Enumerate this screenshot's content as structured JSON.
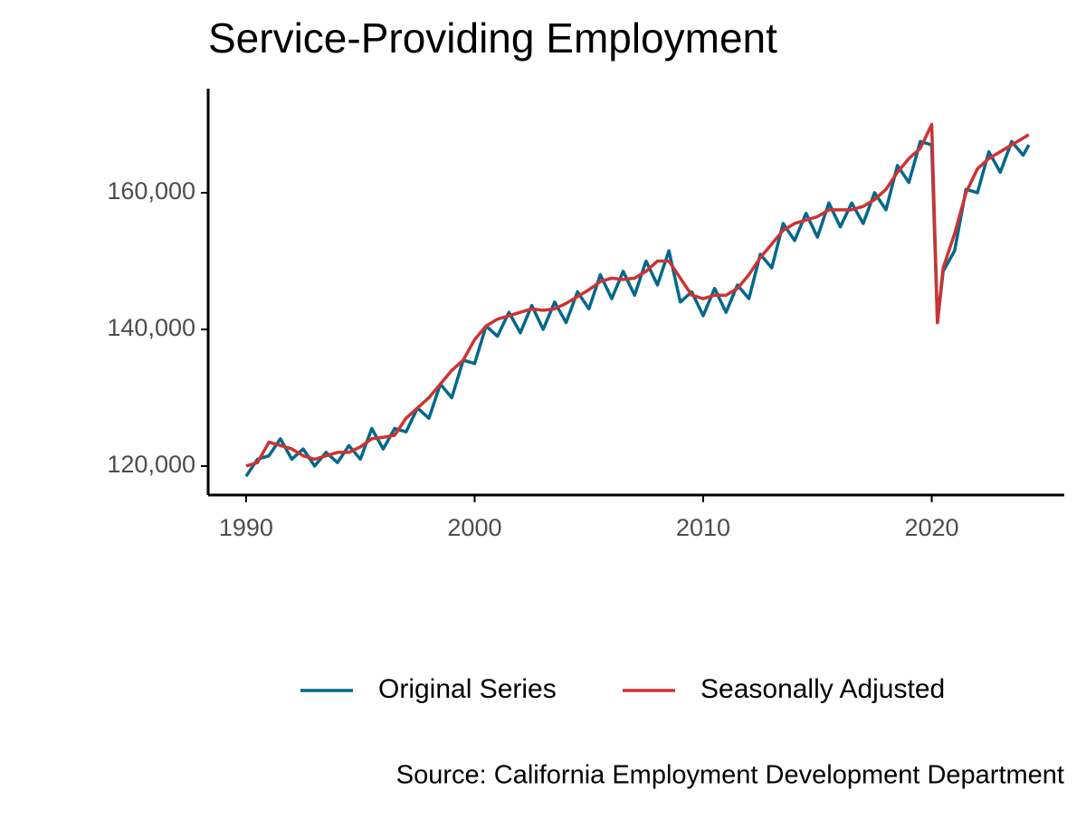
{
  "chart_data": {
    "type": "line",
    "title": "Service-Providing Employment",
    "caption": "Source: California Employment Development Department",
    "x": [
      1990,
      1990.5,
      1991,
      1991.5,
      1992,
      1992.5,
      1993,
      1993.5,
      1994,
      1994.5,
      1995,
      1995.5,
      1996,
      1996.5,
      1997,
      1997.5,
      1998,
      1998.5,
      1999,
      1999.5,
      2000,
      2000.5,
      2001,
      2001.5,
      2002,
      2002.5,
      2003,
      2003.5,
      2004,
      2004.5,
      2005,
      2005.5,
      2006,
      2006.5,
      2007,
      2007.5,
      2008,
      2008.5,
      2009,
      2009.5,
      2010,
      2010.5,
      2011,
      2011.5,
      2012,
      2012.5,
      2013,
      2013.5,
      2014,
      2014.5,
      2015,
      2015.5,
      2016,
      2016.5,
      2017,
      2017.5,
      2018,
      2018.5,
      2019,
      2019.5,
      2020,
      2020.25,
      2020.5,
      2021,
      2021.5,
      2022,
      2022.5,
      2023,
      2023.5,
      2024,
      2024.25
    ],
    "series": [
      {
        "name": "Original Series",
        "color": "#00688b",
        "values": [
          118500,
          121000,
          121500,
          124000,
          121000,
          122500,
          120000,
          122000,
          120500,
          123000,
          121000,
          125500,
          122500,
          125500,
          125000,
          128500,
          127000,
          132000,
          130000,
          135500,
          135000,
          140500,
          139000,
          142500,
          139500,
          143500,
          140000,
          144000,
          141000,
          145500,
          143000,
          148000,
          144500,
          148500,
          145000,
          150000,
          146500,
          151500,
          144000,
          145500,
          142000,
          146000,
          142500,
          146500,
          144500,
          151000,
          149000,
          155500,
          153000,
          157000,
          153500,
          158500,
          155000,
          158500,
          155500,
          160000,
          157500,
          164000,
          161500,
          167500,
          167000,
          141000,
          148500,
          151500,
          160500,
          160000,
          166000,
          163000,
          167500,
          165500,
          167000
        ]
      },
      {
        "name": "Seasonally Adjusted",
        "color": "#cd3333",
        "values": [
          120000,
          120500,
          123500,
          123000,
          122500,
          121500,
          121000,
          121500,
          122000,
          122000,
          122800,
          124000,
          124200,
          124500,
          127000,
          128500,
          130000,
          132000,
          134000,
          135500,
          138500,
          140500,
          141500,
          142000,
          142500,
          143000,
          142800,
          143000,
          143800,
          144800,
          145800,
          147000,
          147500,
          147300,
          147500,
          148500,
          150000,
          150000,
          147500,
          145000,
          144500,
          145000,
          145000,
          146000,
          148000,
          150500,
          152500,
          154500,
          155500,
          156000,
          156500,
          157500,
          157500,
          157500,
          158000,
          159000,
          160500,
          163000,
          165000,
          166500,
          170000,
          141000,
          149000,
          154000,
          160000,
          163500,
          165000,
          166000,
          167000,
          168000,
          168500
        ]
      }
    ],
    "xlim": [
      1988.34,
      2025.8
    ],
    "ylim": [
      115760,
      175230
    ],
    "xticks": [
      1990,
      2000,
      2010,
      2020
    ],
    "yticks": [
      {
        "value": 120000,
        "label": "120,000"
      },
      {
        "value": 140000,
        "label": "140,000"
      },
      {
        "value": 160000,
        "label": "160,000"
      }
    ],
    "legend": "bottom"
  }
}
